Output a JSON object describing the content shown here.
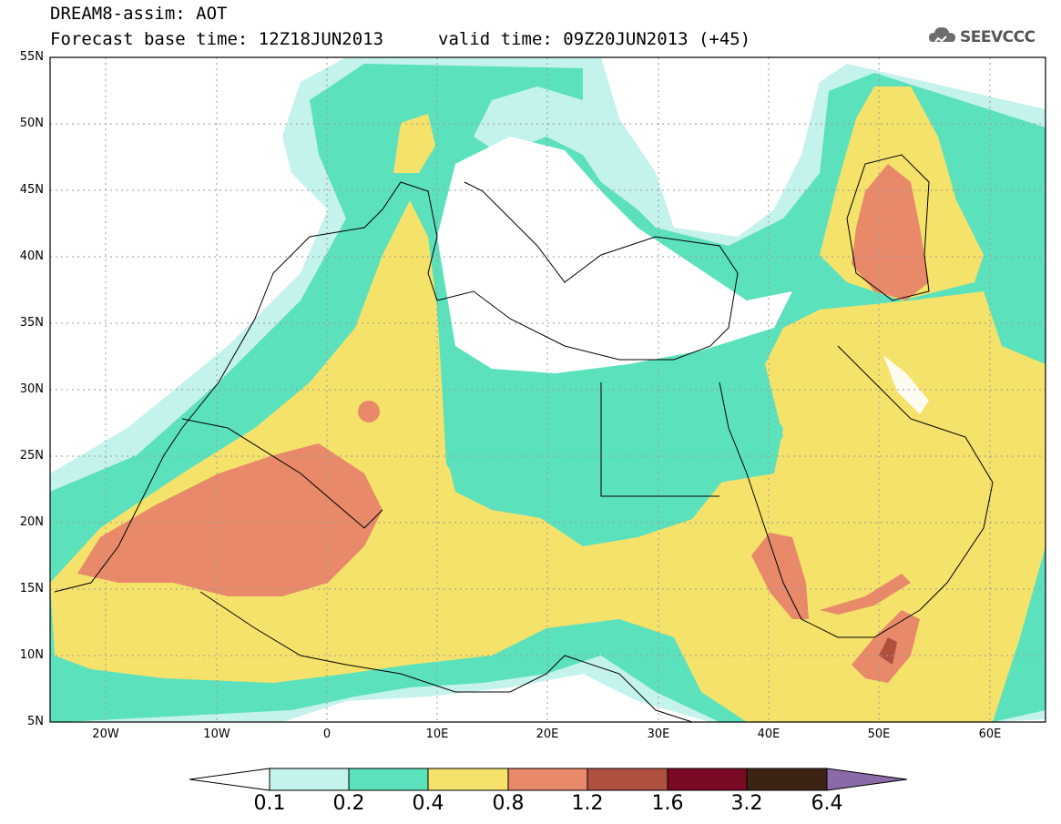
{
  "title": {
    "line1": "DREAM8-assim: AOT",
    "line2": "Forecast base time: 12Z18JUN2013",
    "valid": "valid time: 09Z20JUN2013 (+45)"
  },
  "logo": {
    "text": "SEEVCCC",
    "icon": "cloud-logo-icon"
  },
  "map": {
    "lon_range": [
      -25,
      65
    ],
    "lat_range": [
      5,
      55
    ],
    "lat_ticks": [
      "5N",
      "10N",
      "15N",
      "20N",
      "25N",
      "30N",
      "35N",
      "40N",
      "45N",
      "50N",
      "55N"
    ],
    "lon_ticks": [
      "20W",
      "10W",
      "0",
      "10E",
      "20E",
      "30E",
      "40E",
      "50E",
      "60E"
    ],
    "grid": "dotted"
  },
  "colorbar": {
    "labels": [
      "0.1",
      "0.2",
      "0.4",
      "0.8",
      "1.2",
      "1.6",
      "3.2",
      "6.4"
    ],
    "colors": [
      "#c4f2ec",
      "#5ce1bd",
      "#f5e26b",
      "#e8896a",
      "#b0503f",
      "#7a0a24",
      "#3b2414",
      "#8b6aa8"
    ]
  }
}
